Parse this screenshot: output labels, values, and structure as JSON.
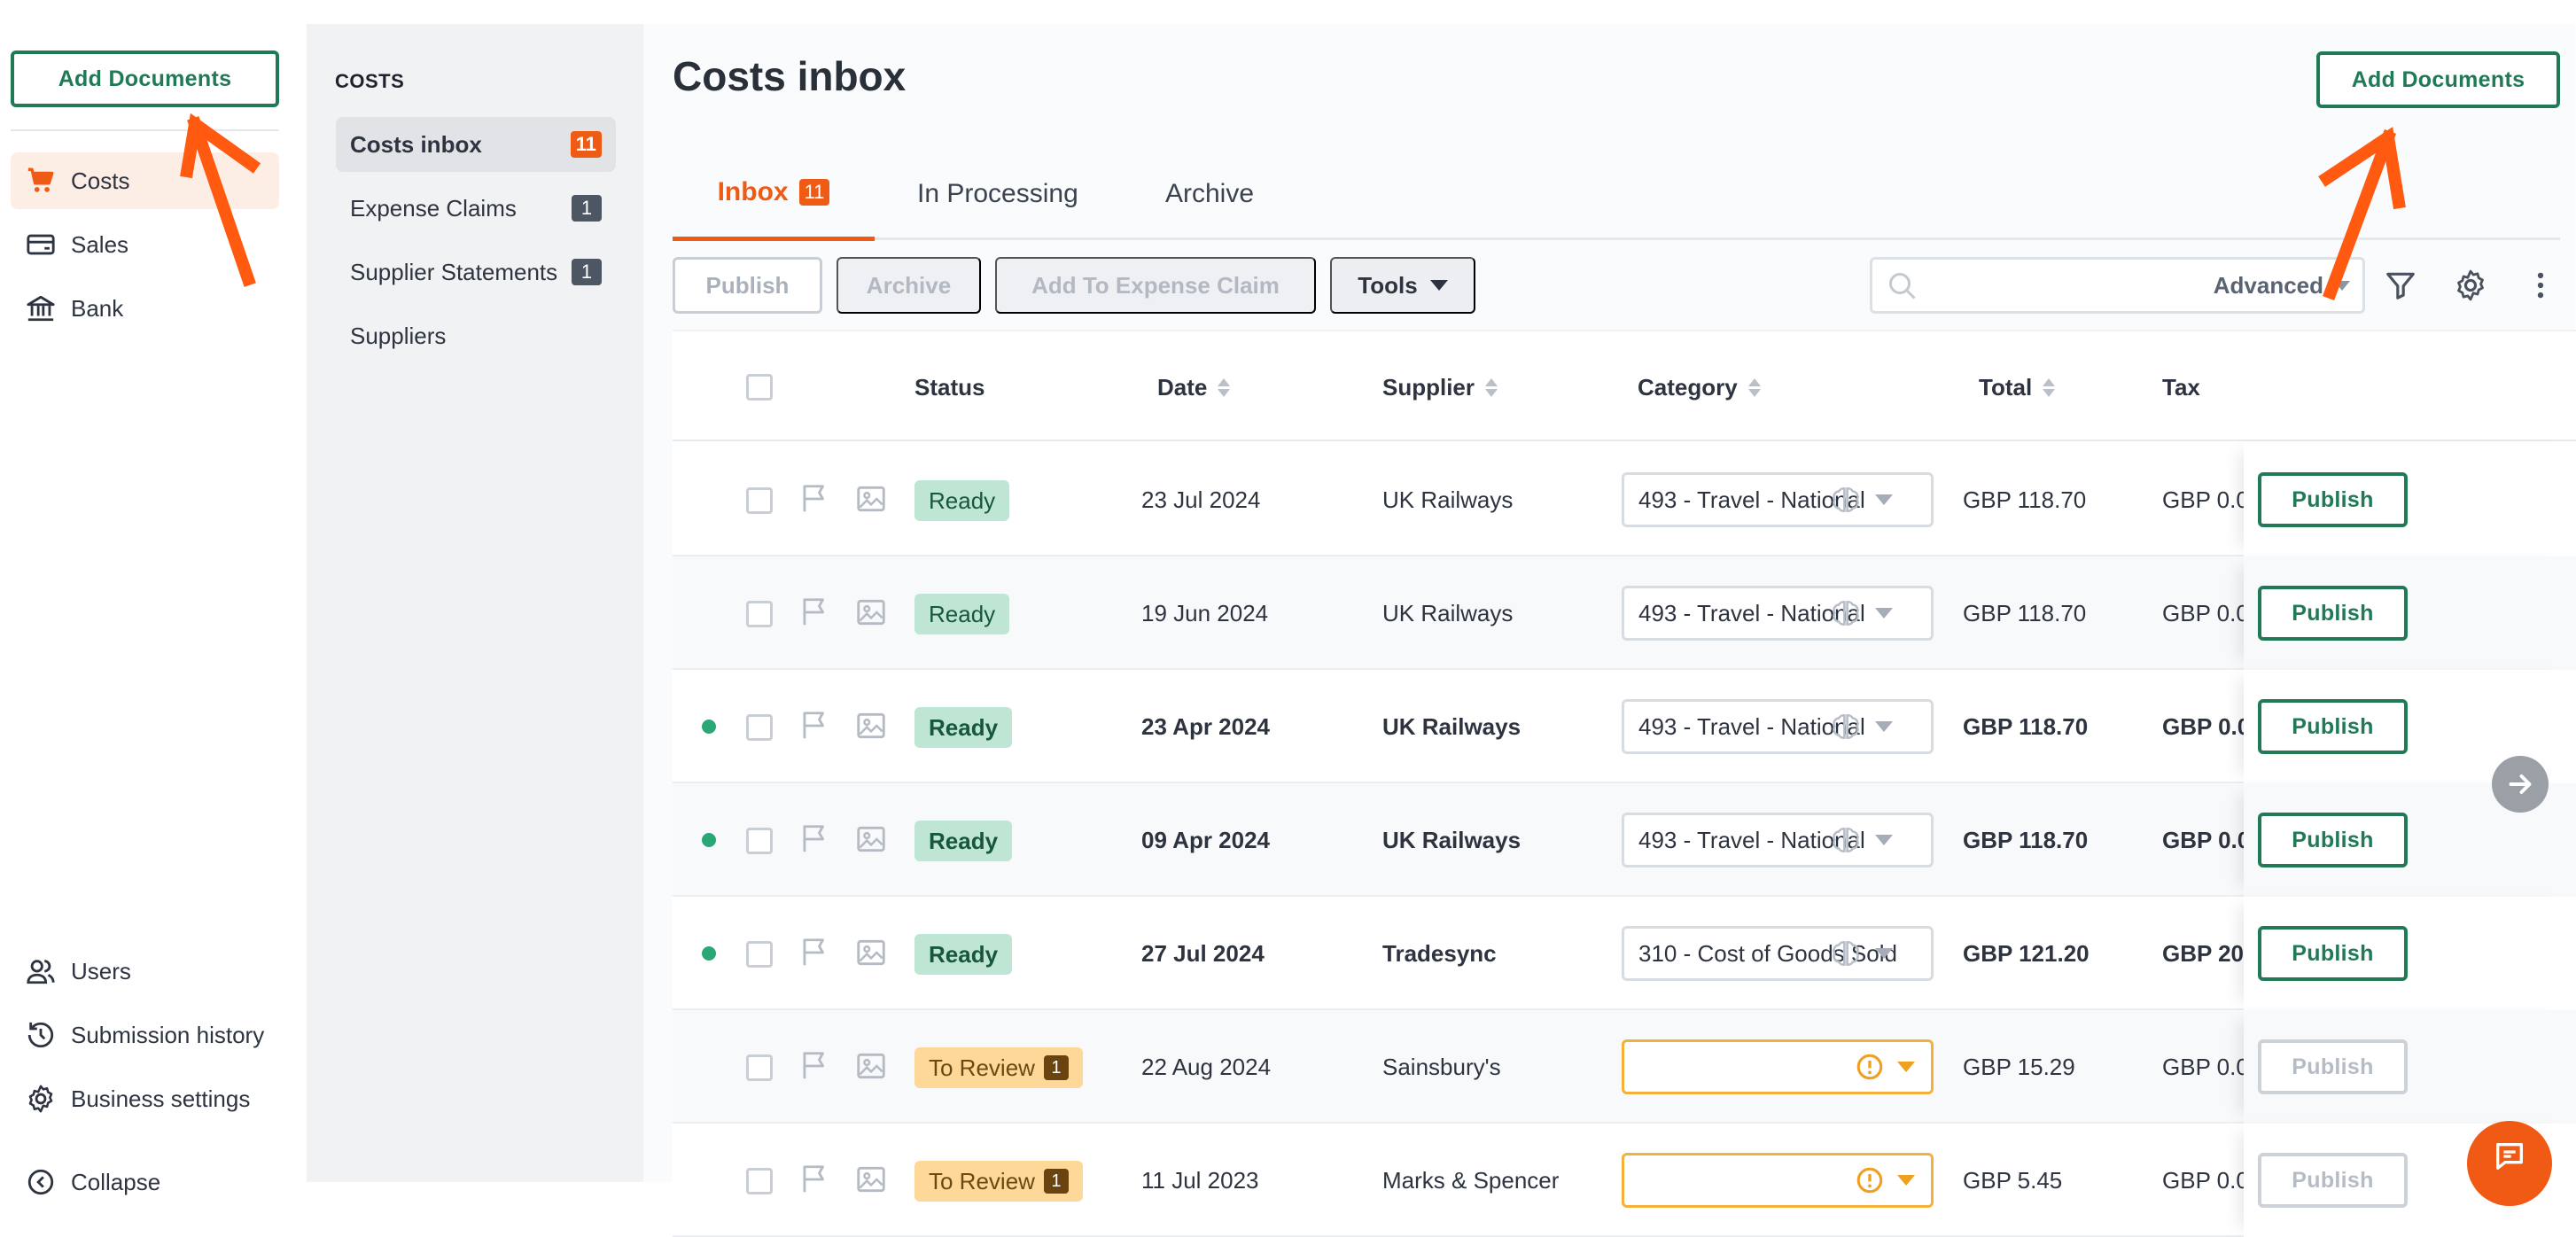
{
  "app_nav": {
    "add_documents_label": "Add Documents",
    "items": [
      {
        "label": "Costs",
        "icon": "cart-icon",
        "active": true
      },
      {
        "label": "Sales",
        "icon": "card-icon",
        "active": false
      },
      {
        "label": "Bank",
        "icon": "bank-icon",
        "active": false
      }
    ],
    "bottom_items": [
      {
        "label": "Users",
        "icon": "users-icon"
      },
      {
        "label": "Submission history",
        "icon": "history-icon"
      },
      {
        "label": "Business settings",
        "icon": "gear-icon"
      },
      {
        "label": "Collapse",
        "icon": "collapse-icon"
      }
    ]
  },
  "sub_nav": {
    "title": "COSTS",
    "items": [
      {
        "label": "Costs inbox",
        "badge": "11",
        "active": true
      },
      {
        "label": "Expense Claims",
        "badge": "1",
        "active": false
      },
      {
        "label": "Supplier Statements",
        "badge": "1",
        "active": false
      },
      {
        "label": "Suppliers",
        "badge": "",
        "active": false
      }
    ]
  },
  "main": {
    "title": "Costs inbox",
    "add_documents_label": "Add Documents",
    "tabs": [
      {
        "label": "Inbox",
        "badge": "11",
        "active": true
      },
      {
        "label": "In Processing",
        "badge": "",
        "active": false
      },
      {
        "label": "Archive",
        "badge": "",
        "active": false
      }
    ],
    "toolbar": {
      "publish_label": "Publish",
      "archive_label": "Archive",
      "add_to_claim_label": "Add To Expense Claim",
      "tools_label": "Tools",
      "search_placeholder": "",
      "advanced_label": "Advanced"
    }
  },
  "table": {
    "columns": {
      "status": "Status",
      "date": "Date",
      "supplier": "Supplier",
      "category": "Category",
      "total": "Total",
      "tax": "Tax"
    },
    "rows": [
      {
        "unread": false,
        "status": "Ready",
        "status_type": "ready",
        "review_count": "",
        "date": "23 Jul 2024",
        "supplier": "UK Railways",
        "category": "493 - Travel - National",
        "total": "GBP 118.70",
        "tax": "GBP 0.0",
        "publish": "Publish",
        "publish_enabled": true
      },
      {
        "unread": false,
        "status": "Ready",
        "status_type": "ready",
        "review_count": "",
        "date": "19 Jun 2024",
        "supplier": "UK Railways",
        "category": "493 - Travel - National",
        "total": "GBP 118.70",
        "tax": "GBP 0.0",
        "publish": "Publish",
        "publish_enabled": true
      },
      {
        "unread": true,
        "status": "Ready",
        "status_type": "ready",
        "review_count": "",
        "date": "23 Apr 2024",
        "supplier": "UK Railways",
        "category": "493 - Travel - National",
        "total": "GBP 118.70",
        "tax": "GBP 0.0",
        "publish": "Publish",
        "publish_enabled": true
      },
      {
        "unread": true,
        "status": "Ready",
        "status_type": "ready",
        "review_count": "",
        "date": "09 Apr 2024",
        "supplier": "UK Railways",
        "category": "493 - Travel - National",
        "total": "GBP 118.70",
        "tax": "GBP 0.0",
        "publish": "Publish",
        "publish_enabled": true
      },
      {
        "unread": true,
        "status": "Ready",
        "status_type": "ready",
        "review_count": "",
        "date": "27 Jul 2024",
        "supplier": "Tradesync",
        "category": "310 - Cost of Goods Sold",
        "total": "GBP 121.20",
        "tax": "GBP 20.",
        "publish": "Publish",
        "publish_enabled": true
      },
      {
        "unread": false,
        "status": "To Review",
        "status_type": "review",
        "review_count": "1",
        "date": "22 Aug 2024",
        "supplier": "Sainsbury's",
        "category": "",
        "total": "GBP 15.29",
        "tax": "GBP 0.0",
        "publish": "Publish",
        "publish_enabled": false
      },
      {
        "unread": false,
        "status": "To Review",
        "status_type": "review",
        "review_count": "1",
        "date": "11 Jul 2023",
        "supplier": "Marks & Spencer",
        "category": "",
        "total": "GBP 5.45",
        "tax": "GBP 0.0",
        "publish": "Publish",
        "publish_enabled": false
      }
    ]
  },
  "colors": {
    "accent": "#ef5a14",
    "primary_green": "#1f7a55",
    "ready_bg": "#bfe6d5",
    "review_bg": "#fdd898",
    "unread_dot": "#2aa774"
  }
}
